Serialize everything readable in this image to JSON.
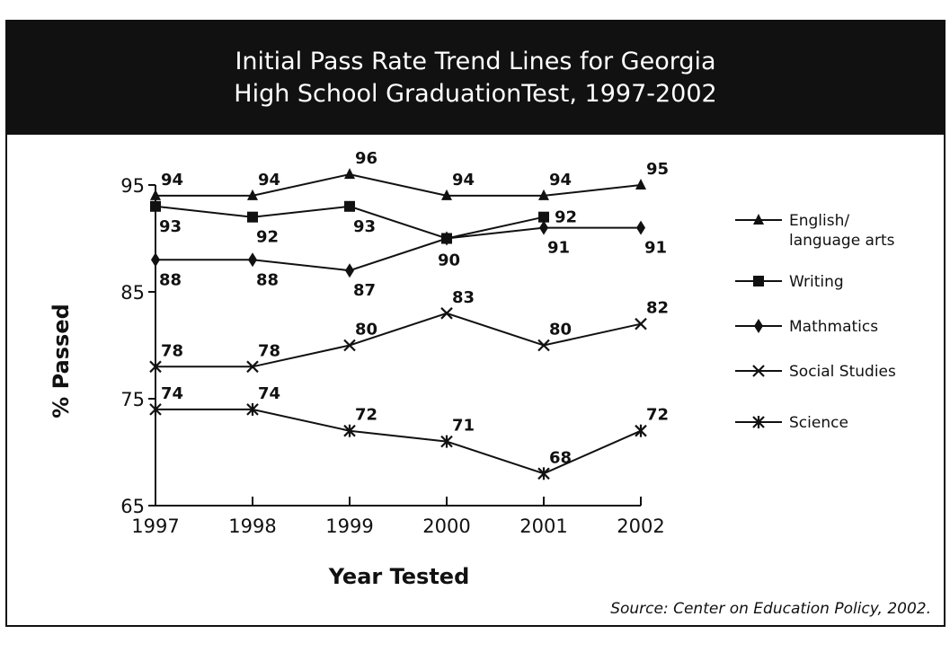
{
  "title_line1": "Initial Pass Rate Trend Lines for Georgia",
  "title_line2": "High School GraduationTest, 1997-2002",
  "source": "Source: Center on Education Policy, 2002.",
  "chart_data": {
    "type": "line",
    "x": [
      1997,
      1998,
      1999,
      2000,
      2001,
      2002
    ],
    "xlabel": "Year Tested",
    "ylabel": "% Passed",
    "ylim": [
      65,
      95
    ],
    "yticks": [
      65,
      75,
      85,
      95
    ],
    "grid": false,
    "legend_position": "right",
    "series": [
      {
        "name": "English/ language arts",
        "marker": "triangle",
        "values": [
          94,
          94,
          96,
          94,
          94,
          95
        ],
        "label_offsets": [
          "above",
          "above",
          "above",
          "above",
          "above",
          "above"
        ]
      },
      {
        "name": "Writing",
        "marker": "square",
        "values": [
          93,
          92,
          93,
          90,
          92,
          null
        ],
        "label_offsets": [
          "below",
          "below",
          "below",
          "below-right",
          "right",
          ""
        ]
      },
      {
        "name": "Mathmatics",
        "marker": "diamond",
        "values": [
          88,
          88,
          87,
          90,
          91,
          91
        ],
        "label_offsets": [
          "below",
          "below",
          "below",
          "",
          "below",
          "below"
        ]
      },
      {
        "name": "Social Studies",
        "marker": "x",
        "values": [
          78,
          78,
          80,
          83,
          80,
          82
        ],
        "label_offsets": [
          "above",
          "above",
          "above",
          "above",
          "above",
          "above"
        ]
      },
      {
        "name": "Science",
        "marker": "star",
        "values": [
          74,
          74,
          72,
          71,
          68,
          72
        ],
        "label_offsets": [
          "above",
          "above",
          "above",
          "above",
          "above",
          "above"
        ]
      }
    ]
  }
}
